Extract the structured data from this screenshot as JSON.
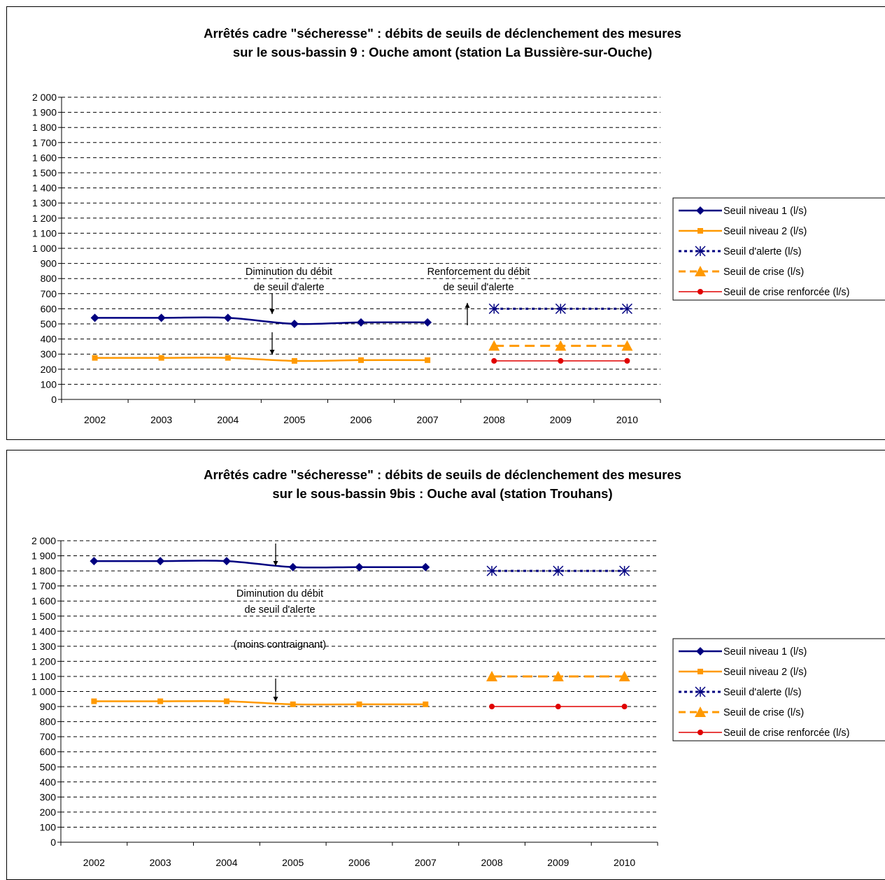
{
  "colors": {
    "seuil1": "#000080",
    "seuil2": "#FF9900",
    "alerte": "#000080",
    "crise": "#FF9900",
    "renforcee": "#E00000",
    "grid": "#000000"
  },
  "chart_data": [
    {
      "type": "line",
      "title_line1": "Arrêtés cadre \"sécheresse\" : débits de seuils de déclenchement des mesures",
      "title_line2": "sur le sous-bassin 9 :  Ouche amont (station La Bussière-sur-Ouche)",
      "categories": [
        "2002",
        "2003",
        "2004",
        "2005",
        "2006",
        "2007",
        "2008",
        "2009",
        "2010"
      ],
      "ylim": [
        0,
        2000
      ],
      "ytick_step": 100,
      "ytick_labels": [
        "0",
        "100",
        "200",
        "300",
        "400",
        "500",
        "600",
        "700",
        "800",
        "900",
        "1 000",
        "1 100",
        "1 200",
        "1 300",
        "1 400",
        "1 500",
        "1 600",
        "1 700",
        "1 800",
        "1 900",
        "2 000"
      ],
      "grid": true,
      "legend_position": "right",
      "series": [
        {
          "name": "Seuil  niveau 1 (l/s)",
          "values": [
            540,
            540,
            540,
            500,
            510,
            510,
            null,
            null,
            null
          ]
        },
        {
          "name": "Seuil  niveau 2 (l/s)",
          "values": [
            275,
            275,
            275,
            255,
            260,
            260,
            null,
            null,
            null
          ]
        },
        {
          "name": "Seuil d'alerte (l/s)",
          "values": [
            null,
            null,
            null,
            null,
            null,
            null,
            600,
            600,
            600
          ]
        },
        {
          "name": "Seuil  de crise (l/s)",
          "values": [
            null,
            null,
            null,
            null,
            null,
            null,
            355,
            355,
            355
          ]
        },
        {
          "name": "Seuil de crise renforcée (l/s)",
          "values": [
            null,
            null,
            null,
            null,
            null,
            null,
            255,
            255,
            255
          ]
        }
      ],
      "annotations": [
        {
          "lines": [
            "Diminution du débit",
            "de seuil d'alerte"
          ]
        },
        {
          "lines": [
            "Renforcement du débit",
            "de seuil d'alerte"
          ]
        }
      ]
    },
    {
      "type": "line",
      "title_line1": "Arrêtés cadre \"sécheresse\" : débits de seuils de déclenchement des mesures",
      "title_line2": "sur le sous-bassin 9bis : Ouche aval (station Trouhans)",
      "categories": [
        "2002",
        "2003",
        "2004",
        "2005",
        "2006",
        "2007",
        "2008",
        "2009",
        "2010"
      ],
      "ylim": [
        0,
        2000
      ],
      "ytick_step": 100,
      "ytick_labels": [
        "0",
        "100",
        "200",
        "300",
        "400",
        "500",
        "600",
        "700",
        "800",
        "900",
        "1 000",
        "1 100",
        "1 200",
        "1 300",
        "1 400",
        "1 500",
        "1 600",
        "1 700",
        "1 800",
        "1 900",
        "2 000"
      ],
      "grid": true,
      "legend_position": "right",
      "series": [
        {
          "name": "Seuil  niveau 1 (l/s)",
          "values": [
            1865,
            1865,
            1865,
            1825,
            1825,
            1825,
            null,
            null,
            null
          ]
        },
        {
          "name": "Seuil  niveau 2 (l/s)",
          "values": [
            935,
            935,
            935,
            915,
            915,
            915,
            null,
            null,
            null
          ]
        },
        {
          "name": "Seuil d'alerte (l/s)",
          "values": [
            null,
            null,
            null,
            null,
            null,
            null,
            1800,
            1800,
            1800
          ]
        },
        {
          "name": "Seuil  de crise (l/s)",
          "values": [
            null,
            null,
            null,
            null,
            null,
            null,
            1100,
            1100,
            1100
          ]
        },
        {
          "name": "Seuil de crise renforcée (l/s)",
          "values": [
            null,
            null,
            null,
            null,
            null,
            null,
            900,
            900,
            900
          ]
        }
      ],
      "annotations": [
        {
          "lines": [
            "Diminution du débit",
            "de seuil d'alerte",
            "",
            "(moins contraignant)"
          ]
        }
      ]
    }
  ]
}
